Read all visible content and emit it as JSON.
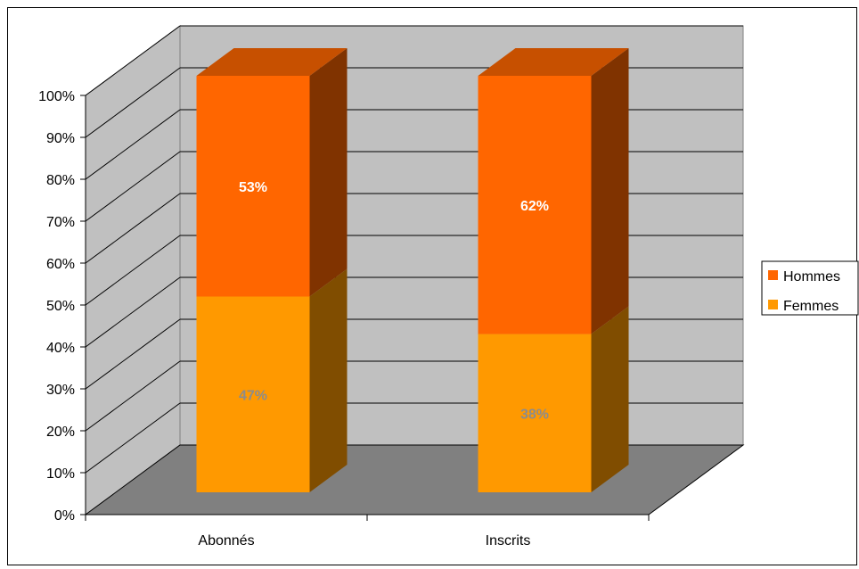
{
  "chart_data": {
    "type": "bar",
    "stacked": true,
    "percent_stacked": true,
    "three_d": true,
    "categories": [
      "Abonnés",
      "Inscrits"
    ],
    "series": [
      {
        "name": "Femmes",
        "values": [
          47,
          38
        ],
        "labels": [
          "47%",
          "38%"
        ],
        "color": "#ff9900",
        "label_color": "#8c8c8c"
      },
      {
        "name": "Hommes",
        "values": [
          53,
          62
        ],
        "labels": [
          "53%",
          "62%"
        ],
        "color": "#ff6600",
        "label_color": "#ffffff"
      }
    ],
    "ylim": [
      0,
      100
    ],
    "yticks": [
      0,
      10,
      20,
      30,
      40,
      50,
      60,
      70,
      80,
      90,
      100
    ],
    "ytick_labels": [
      "0%",
      "10%",
      "20%",
      "30%",
      "40%",
      "50%",
      "60%",
      "70%",
      "80%",
      "90%",
      "100%"
    ],
    "grid": true,
    "legend_position": "right",
    "legend_order": [
      "Hommes",
      "Femmes"
    ],
    "wall_color": "#c0c0c0",
    "floor_color": "#808080"
  }
}
